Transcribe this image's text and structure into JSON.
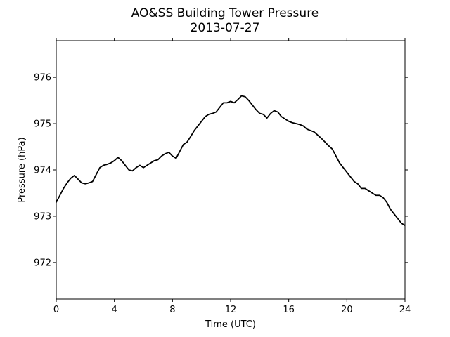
{
  "chart_data": {
    "type": "line",
    "title": "AO&SS Building Tower Pressure",
    "subtitle": "2013-07-27",
    "xlabel": "Time (UTC)",
    "ylabel": "Pressure (hPa)",
    "xlim": [
      0,
      24
    ],
    "ylim": [
      971.21,
      976.79
    ],
    "xticks": [
      0,
      4,
      8,
      12,
      16,
      20,
      24
    ],
    "yticks": [
      972,
      973,
      974,
      975,
      976
    ],
    "grid": false,
    "x": [
      0,
      0.25,
      0.5,
      0.75,
      1,
      1.25,
      1.5,
      1.75,
      2,
      2.25,
      2.5,
      2.75,
      3,
      3.25,
      3.5,
      3.75,
      4,
      4.25,
      4.5,
      4.75,
      5,
      5.25,
      5.5,
      5.75,
      6,
      6.25,
      6.5,
      6.75,
      7,
      7.25,
      7.5,
      7.75,
      8,
      8.25,
      8.5,
      8.75,
      9,
      9.25,
      9.5,
      9.75,
      10,
      10.25,
      10.5,
      10.75,
      11,
      11.25,
      11.5,
      11.75,
      12,
      12.25,
      12.5,
      12.75,
      13,
      13.25,
      13.5,
      13.75,
      14,
      14.25,
      14.5,
      14.75,
      15,
      15.25,
      15.5,
      15.75,
      16,
      16.25,
      16.5,
      16.75,
      17,
      17.25,
      17.5,
      17.75,
      18,
      18.25,
      18.5,
      18.75,
      19,
      19.25,
      19.5,
      19.75,
      20,
      20.25,
      20.5,
      20.75,
      21,
      21.25,
      21.5,
      21.75,
      22,
      22.25,
      22.5,
      22.75,
      23,
      23.25,
      23.5,
      23.75,
      24
    ],
    "series": [
      {
        "name": "Pressure",
        "color": "#000000",
        "values": [
          973.3,
          973.45,
          973.6,
          973.72,
          973.82,
          973.88,
          973.8,
          973.72,
          973.7,
          973.72,
          973.75,
          973.9,
          974.05,
          974.1,
          974.12,
          974.15,
          974.2,
          974.27,
          974.2,
          974.1,
          974.0,
          973.98,
          974.05,
          974.1,
          974.05,
          974.1,
          974.15,
          974.2,
          974.22,
          974.3,
          974.35,
          974.38,
          974.3,
          974.25,
          974.4,
          974.55,
          974.6,
          974.72,
          974.85,
          974.95,
          975.05,
          975.15,
          975.2,
          975.22,
          975.25,
          975.35,
          975.45,
          975.45,
          975.48,
          975.45,
          975.52,
          975.6,
          975.58,
          975.5,
          975.4,
          975.3,
          975.22,
          975.2,
          975.12,
          975.22,
          975.28,
          975.25,
          975.15,
          975.1,
          975.05,
          975.02,
          975.0,
          974.98,
          974.95,
          974.88,
          974.85,
          974.82,
          974.75,
          974.68,
          974.6,
          974.52,
          974.45,
          974.3,
          974.15,
          974.05,
          973.95,
          973.85,
          973.75,
          973.7,
          973.6,
          973.6,
          973.55,
          973.5,
          973.45,
          973.45,
          973.4,
          973.3,
          973.15,
          973.05,
          972.95,
          972.85,
          972.8
        ]
      }
    ]
  }
}
